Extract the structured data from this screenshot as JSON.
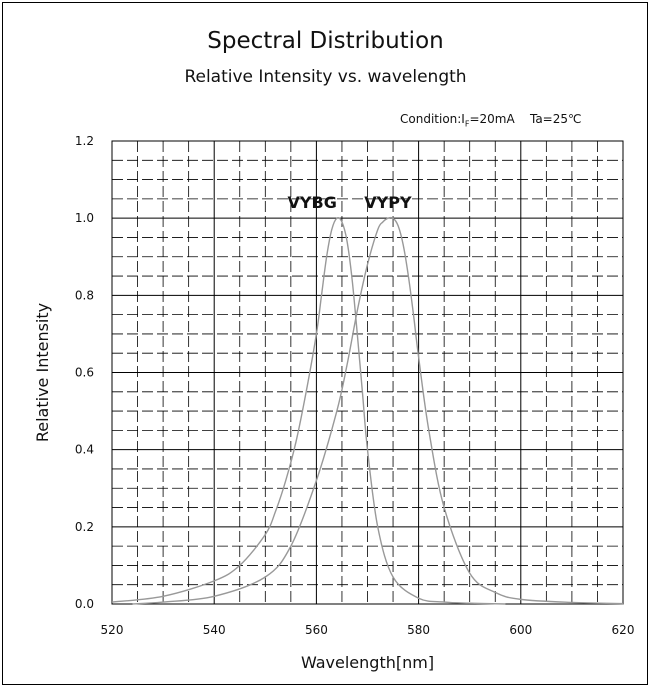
{
  "chart_data": {
    "type": "line",
    "title": "Spectral Distribution",
    "subtitle": "Relative Intensity vs. wavelength",
    "condition": {
      "prefix": "Condition:I",
      "subscript": "F",
      "suffix": "=20mA",
      "temperature": "Ta=25℃"
    },
    "xlabel": "Wavelength[nm]",
    "ylabel": "Relative Intensity",
    "xlim": [
      520,
      620
    ],
    "ylim": [
      0,
      1.2
    ],
    "xticks": [
      "520",
      "540",
      "560",
      "580",
      "600",
      "620"
    ],
    "yticks": [
      "0.0",
      "0.2",
      "0.4",
      "0.6",
      "0.8",
      "1.0",
      "1.2"
    ],
    "grid": true,
    "series": [
      {
        "name": "VYBG",
        "color": "#999999",
        "x": [
          520,
          530,
          540,
          545,
          550,
          552,
          554,
          556,
          558,
          560,
          561,
          562,
          563,
          564,
          565,
          566,
          567,
          568,
          569,
          570,
          572,
          575,
          580,
          585,
          590,
          597
        ],
        "y": [
          0.005,
          0.02,
          0.06,
          0.1,
          0.18,
          0.24,
          0.32,
          0.42,
          0.55,
          0.7,
          0.8,
          0.9,
          0.97,
          1.0,
          0.99,
          0.94,
          0.84,
          0.7,
          0.55,
          0.4,
          0.2,
          0.07,
          0.015,
          0.005,
          0.002,
          0.0
        ]
      },
      {
        "name": "VYPY",
        "color": "#999999",
        "x": [
          524,
          530,
          540,
          550,
          555,
          560,
          564,
          566,
          568,
          570,
          572,
          573,
          574,
          575,
          576,
          577,
          578,
          579,
          580,
          582,
          585,
          590,
          595,
          600,
          610,
          620
        ],
        "y": [
          0.0,
          0.005,
          0.02,
          0.07,
          0.15,
          0.32,
          0.5,
          0.62,
          0.76,
          0.88,
          0.97,
          0.99,
          1.0,
          1.0,
          0.98,
          0.93,
          0.85,
          0.75,
          0.64,
          0.45,
          0.25,
          0.08,
          0.03,
          0.012,
          0.004,
          0.001
        ]
      }
    ]
  }
}
